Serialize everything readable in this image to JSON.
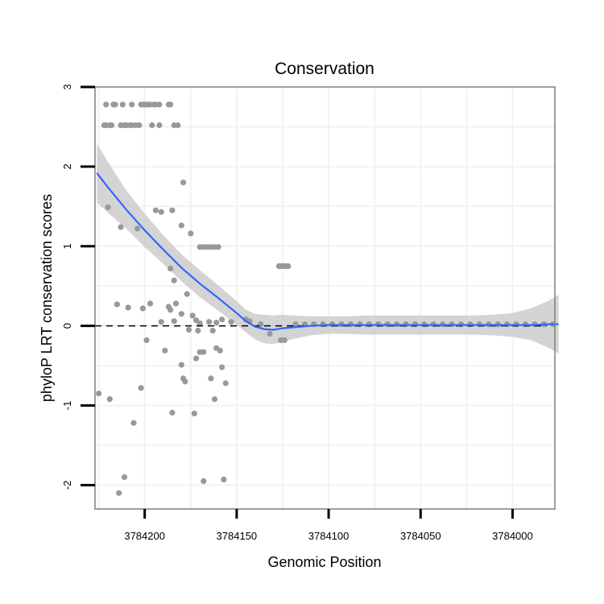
{
  "chart_data": {
    "type": "scatter",
    "title": "Conservation",
    "xlabel": "Genomic Position",
    "ylabel": "phyloP LRT conservation scores",
    "x_reversed": true,
    "xlim": [
      3784227,
      3783977
    ],
    "ylim": [
      -2.3,
      3.0
    ],
    "x_ticks": [
      3784200,
      3784150,
      3784100,
      3784050,
      3784000
    ],
    "y_ticks": [
      -2,
      -1,
      0,
      1,
      2,
      3
    ],
    "x_tick_labels": [
      "3784200",
      "3784150",
      "3784100",
      "3784050",
      "3784000"
    ],
    "y_tick_labels": [
      "-2",
      "-1",
      "0",
      "1",
      "2",
      "3"
    ],
    "grid": true,
    "reference_line": {
      "y": 0,
      "style": "dashed"
    },
    "colors": {
      "points": "#999999",
      "smooth_line": "#3366ff",
      "ci_band": "#cccccc",
      "grid": "#f2f2f2",
      "panel_border": "#7f7f7f",
      "ref_line": "#000000"
    },
    "series": [
      {
        "name": "scores",
        "points": [
          [
            3784221,
            2.78
          ],
          [
            3784217,
            2.78
          ],
          [
            3784216,
            2.78
          ],
          [
            3784212,
            2.78
          ],
          [
            3784207,
            2.78
          ],
          [
            3784202,
            2.78
          ],
          [
            3784201,
            2.78
          ],
          [
            3784200,
            2.78
          ],
          [
            3784199,
            2.78
          ],
          [
            3784198,
            2.78
          ],
          [
            3784197,
            2.78
          ],
          [
            3784195,
            2.78
          ],
          [
            3784194,
            2.78
          ],
          [
            3784192,
            2.78
          ],
          [
            3784187,
            2.78
          ],
          [
            3784186,
            2.78
          ],
          [
            3784222,
            2.52
          ],
          [
            3784221,
            2.52
          ],
          [
            3784219,
            2.52
          ],
          [
            3784218,
            2.52
          ],
          [
            3784213,
            2.52
          ],
          [
            3784211,
            2.52
          ],
          [
            3784210,
            2.52
          ],
          [
            3784208,
            2.52
          ],
          [
            3784207,
            2.52
          ],
          [
            3784205,
            2.52
          ],
          [
            3784203,
            2.52
          ],
          [
            3784196,
            2.52
          ],
          [
            3784192,
            2.52
          ],
          [
            3784184,
            2.52
          ],
          [
            3784182,
            2.52
          ],
          [
            3784220,
            1.49
          ],
          [
            3784213,
            1.24
          ],
          [
            3784204,
            1.22
          ],
          [
            3784194,
            1.45
          ],
          [
            3784191,
            1.43
          ],
          [
            3784185,
            1.45
          ],
          [
            3784179,
            1.8
          ],
          [
            3784180,
            1.26
          ],
          [
            3784175,
            1.16
          ],
          [
            3784170,
            0.99
          ],
          [
            3784168,
            0.99
          ],
          [
            3784166,
            0.99
          ],
          [
            3784164,
            0.99
          ],
          [
            3784162,
            0.99
          ],
          [
            3784160,
            0.99
          ],
          [
            3784127,
            0.75
          ],
          [
            3784126,
            0.75
          ],
          [
            3784125,
            0.75
          ],
          [
            3784124,
            0.75
          ],
          [
            3784123,
            0.75
          ],
          [
            3784122,
            0.75
          ],
          [
            3784186,
            0.72
          ],
          [
            3784184,
            0.57
          ],
          [
            3784177,
            0.4
          ],
          [
            3784183,
            0.28
          ],
          [
            3784187,
            0.24
          ],
          [
            3784186,
            0.2
          ],
          [
            3784180,
            0.15
          ],
          [
            3784215,
            0.27
          ],
          [
            3784209,
            0.23
          ],
          [
            3784201,
            0.22
          ],
          [
            3784197,
            0.28
          ],
          [
            3784191,
            0.05
          ],
          [
            3784184,
            0.06
          ],
          [
            3784174,
            0.13
          ],
          [
            3784172,
            0.07
          ],
          [
            3784170,
            0.03
          ],
          [
            3784165,
            0.05
          ],
          [
            3784161,
            0.04
          ],
          [
            3784158,
            0.08
          ],
          [
            3784153,
            0.05
          ],
          [
            3784176,
            -0.05
          ],
          [
            3784171,
            -0.06
          ],
          [
            3784163,
            -0.06
          ],
          [
            3784145,
            0.08
          ],
          [
            3784143,
            0.06
          ],
          [
            3784137,
            0.02
          ],
          [
            3784132,
            -0.1
          ],
          [
            3784126,
            -0.18
          ],
          [
            3784124,
            -0.18
          ],
          [
            3784199,
            -0.18
          ],
          [
            3784189,
            -0.31
          ],
          [
            3784170,
            -0.33
          ],
          [
            3784168,
            -0.33
          ],
          [
            3784161,
            -0.28
          ],
          [
            3784159,
            -0.31
          ],
          [
            3784180,
            -0.49
          ],
          [
            3784172,
            -0.41
          ],
          [
            3784158,
            -0.52
          ],
          [
            3784179,
            -0.66
          ],
          [
            3784178,
            -0.7
          ],
          [
            3784164,
            -0.66
          ],
          [
            3784156,
            -0.72
          ],
          [
            3784225,
            -0.85
          ],
          [
            3784219,
            -0.92
          ],
          [
            3784202,
            -0.78
          ],
          [
            3784162,
            -0.92
          ],
          [
            3784185,
            -1.09
          ],
          [
            3784173,
            -1.1
          ],
          [
            3784206,
            -1.22
          ],
          [
            3784211,
            -1.9
          ],
          [
            3784214,
            -2.1
          ],
          [
            3784168,
            -1.95
          ],
          [
            3784157,
            -1.93
          ],
          [
            3784118,
            0.02
          ],
          [
            3784113,
            0.02
          ],
          [
            3784108,
            0.02
          ],
          [
            3784103,
            0.02
          ],
          [
            3784098,
            0.02
          ],
          [
            3784093,
            0.02
          ],
          [
            3784088,
            0.02
          ],
          [
            3784083,
            0.02
          ],
          [
            3784078,
            0.02
          ],
          [
            3784073,
            0.02
          ],
          [
            3784068,
            0.02
          ],
          [
            3784063,
            0.02
          ],
          [
            3784058,
            0.02
          ],
          [
            3784053,
            0.02
          ],
          [
            3784048,
            0.02
          ],
          [
            3784043,
            0.02
          ],
          [
            3784038,
            0.02
          ],
          [
            3784033,
            0.02
          ],
          [
            3784028,
            0.02
          ],
          [
            3784023,
            0.02
          ],
          [
            3784018,
            0.02
          ],
          [
            3784013,
            0.02
          ],
          [
            3784008,
            0.02
          ],
          [
            3784003,
            0.02
          ],
          [
            3783998,
            0.02
          ],
          [
            3783993,
            0.02
          ],
          [
            3783988,
            0.02
          ],
          [
            3783983,
            0.02
          ],
          [
            3783978,
            0.02
          ]
        ]
      }
    ],
    "smooth": {
      "method": "loess",
      "x": [
        3784226,
        3784220,
        3784210,
        3784200,
        3784190,
        3784180,
        3784170,
        3784160,
        3784150,
        3784145,
        3784140,
        3784135,
        3784130,
        3784125,
        3784120,
        3784110,
        3784100,
        3784090,
        3784080,
        3784070,
        3784060,
        3784050,
        3784040,
        3784030,
        3784020,
        3784010,
        3784000,
        3783990,
        3783980,
        3783975
      ],
      "y": [
        1.92,
        1.74,
        1.46,
        1.2,
        0.96,
        0.73,
        0.53,
        0.35,
        0.16,
        0.06,
        -0.01,
        -0.04,
        -0.05,
        -0.03,
        -0.02,
        0.0,
        0.01,
        0.01,
        0.01,
        0.01,
        0.01,
        0.01,
        0.01,
        0.01,
        0.01,
        0.01,
        0.01,
        0.01,
        0.02,
        0.02
      ],
      "lower": [
        1.55,
        1.42,
        1.22,
        0.99,
        0.78,
        0.56,
        0.36,
        0.19,
        0.01,
        -0.08,
        -0.17,
        -0.22,
        -0.23,
        -0.2,
        -0.17,
        -0.12,
        -0.1,
        -0.1,
        -0.11,
        -0.11,
        -0.11,
        -0.11,
        -0.11,
        -0.11,
        -0.11,
        -0.12,
        -0.14,
        -0.18,
        -0.28,
        -0.35
      ],
      "upper": [
        2.29,
        2.06,
        1.7,
        1.41,
        1.14,
        0.9,
        0.7,
        0.51,
        0.31,
        0.2,
        0.15,
        0.14,
        0.13,
        0.14,
        0.13,
        0.12,
        0.12,
        0.12,
        0.13,
        0.13,
        0.13,
        0.13,
        0.13,
        0.13,
        0.13,
        0.14,
        0.16,
        0.22,
        0.32,
        0.39
      ]
    }
  }
}
